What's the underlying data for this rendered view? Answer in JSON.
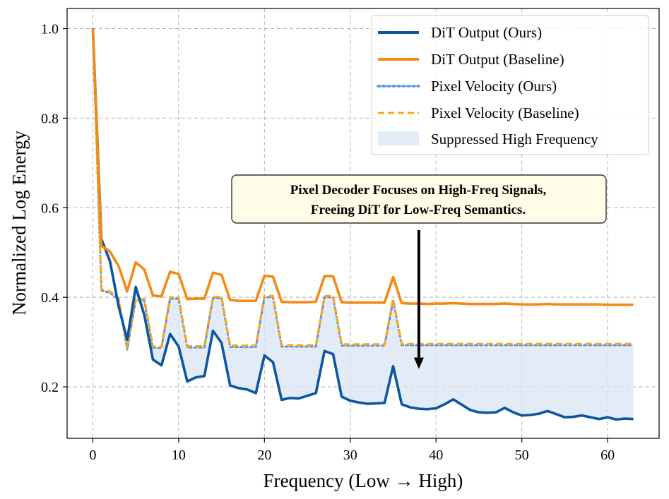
{
  "chart_data": {
    "type": "line",
    "xlabel": "Frequency (Low → High)",
    "ylabel": "Normalized Log Energy",
    "xlim": [
      -3,
      66
    ],
    "ylim": [
      0.085,
      1.045
    ],
    "xticks": [
      0,
      10,
      20,
      30,
      40,
      50,
      60
    ],
    "yticks": [
      0.2,
      0.4,
      0.6,
      0.8,
      1.0
    ],
    "xtick_labels": [
      "0",
      "10",
      "20",
      "30",
      "40",
      "50",
      "60"
    ],
    "ytick_labels": [
      "0.2",
      "0.4",
      "0.6",
      "0.8",
      "1.0"
    ],
    "grid": true,
    "legend_position": "top-right",
    "fill_label": "Suppressed High Frequency",
    "fill_color": "#dae6f3",
    "x": [
      0,
      1,
      2,
      3,
      4,
      5,
      6,
      7,
      8,
      9,
      10,
      11,
      12,
      13,
      14,
      15,
      16,
      17,
      18,
      19,
      20,
      21,
      22,
      23,
      24,
      25,
      26,
      27,
      28,
      29,
      30,
      31,
      32,
      33,
      34,
      35,
      36,
      37,
      38,
      39,
      40,
      41,
      42,
      43,
      44,
      45,
      46,
      47,
      48,
      49,
      50,
      51,
      52,
      53,
      54,
      55,
      56,
      57,
      58,
      59,
      60,
      61,
      62,
      63
    ],
    "series": [
      {
        "name": "DiT Output (Ours)",
        "color": "#0a56a2",
        "style": "solid",
        "values": [
          1.0,
          0.53,
          0.48,
          0.38,
          0.305,
          0.423,
          0.36,
          0.261,
          0.248,
          0.318,
          0.29,
          0.212,
          0.221,
          0.224,
          0.325,
          0.298,
          0.203,
          0.197,
          0.194,
          0.186,
          0.27,
          0.255,
          0.171,
          0.175,
          0.174,
          0.18,
          0.186,
          0.28,
          0.273,
          0.178,
          0.169,
          0.165,
          0.162,
          0.163,
          0.164,
          0.246,
          0.161,
          0.154,
          0.151,
          0.15,
          0.152,
          0.161,
          0.172,
          0.16,
          0.148,
          0.143,
          0.142,
          0.143,
          0.153,
          0.143,
          0.136,
          0.137,
          0.14,
          0.146,
          0.139,
          0.132,
          0.133,
          0.136,
          0.132,
          0.128,
          0.132,
          0.127,
          0.129,
          0.128
        ]
      },
      {
        "name": "DiT Output (Baseline)",
        "color": "#f58a13",
        "style": "solid",
        "values": [
          1.0,
          0.515,
          0.502,
          0.47,
          0.413,
          0.478,
          0.462,
          0.404,
          0.402,
          0.457,
          0.452,
          0.396,
          0.397,
          0.397,
          0.455,
          0.45,
          0.394,
          0.392,
          0.392,
          0.392,
          0.448,
          0.446,
          0.39,
          0.389,
          0.389,
          0.389,
          0.39,
          0.447,
          0.447,
          0.389,
          0.388,
          0.388,
          0.388,
          0.388,
          0.388,
          0.445,
          0.387,
          0.386,
          0.386,
          0.385,
          0.386,
          0.386,
          0.387,
          0.386,
          0.385,
          0.385,
          0.385,
          0.385,
          0.386,
          0.385,
          0.384,
          0.384,
          0.384,
          0.385,
          0.384,
          0.384,
          0.384,
          0.384,
          0.384,
          0.384,
          0.383,
          0.383,
          0.383,
          0.383
        ]
      },
      {
        "name": "Pixel Velocity (Ours)",
        "color": "#5b93e4",
        "style": "dotted",
        "values": [
          1.0,
          0.415,
          0.41,
          0.395,
          0.283,
          0.393,
          0.393,
          0.287,
          0.287,
          0.397,
          0.397,
          0.288,
          0.288,
          0.288,
          0.398,
          0.398,
          0.289,
          0.289,
          0.289,
          0.289,
          0.4,
          0.4,
          0.29,
          0.29,
          0.29,
          0.29,
          0.29,
          0.4,
          0.4,
          0.292,
          0.292,
          0.292,
          0.292,
          0.292,
          0.292,
          0.393,
          0.293,
          0.293,
          0.293,
          0.293,
          0.293,
          0.293,
          0.293,
          0.293,
          0.293,
          0.293,
          0.293,
          0.293,
          0.293,
          0.293,
          0.293,
          0.293,
          0.293,
          0.293,
          0.293,
          0.293,
          0.293,
          0.293,
          0.293,
          0.293,
          0.293,
          0.293,
          0.293,
          0.293
        ]
      },
      {
        "name": "Pixel Velocity (Baseline)",
        "color": "#ffa50f",
        "style": "dashed",
        "values": [
          1.0,
          0.418,
          0.413,
          0.398,
          0.286,
          0.396,
          0.396,
          0.29,
          0.29,
          0.4,
          0.4,
          0.291,
          0.291,
          0.291,
          0.401,
          0.401,
          0.292,
          0.292,
          0.292,
          0.292,
          0.403,
          0.403,
          0.293,
          0.293,
          0.293,
          0.293,
          0.293,
          0.403,
          0.403,
          0.295,
          0.295,
          0.295,
          0.295,
          0.295,
          0.295,
          0.396,
          0.296,
          0.296,
          0.296,
          0.296,
          0.296,
          0.296,
          0.296,
          0.296,
          0.296,
          0.296,
          0.296,
          0.296,
          0.296,
          0.296,
          0.296,
          0.296,
          0.296,
          0.296,
          0.296,
          0.296,
          0.296,
          0.296,
          0.296,
          0.296,
          0.296,
          0.296,
          0.296,
          0.296
        ]
      }
    ],
    "annotation": {
      "lines": [
        "Pixel Decoder Focuses on High-Freq Signals,",
        "Freeing DiT for Low-Freq Semantics."
      ],
      "box_color": "#fefee8",
      "arrow_from": [
        38,
        0.55
      ],
      "arrow_to": [
        38,
        0.24
      ]
    }
  }
}
